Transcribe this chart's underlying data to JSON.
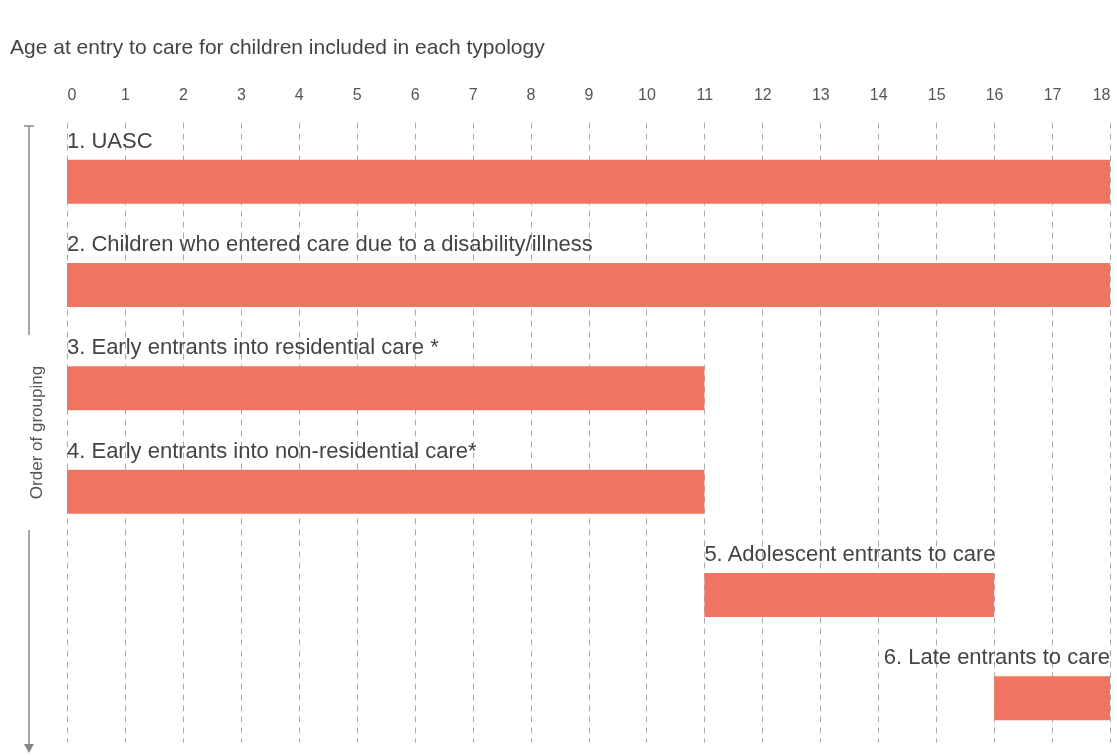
{
  "chart_data": {
    "type": "bar",
    "orientation": "horizontal",
    "title": "Age at entry to care for children included in each typology",
    "ylabel": "Order of grouping",
    "categories": [
      "1. UASC",
      "2. Children who entered care due to a disability/illness",
      "3. Early entrants into residential care *",
      "4. Early entrants into non-residential care*",
      "5. Adolescent entrants to care",
      "6. Late entrants to care"
    ],
    "base": [
      0,
      0,
      0,
      0,
      11,
      16
    ],
    "values": [
      18,
      18,
      11,
      11,
      5,
      2
    ],
    "color": "#f07462",
    "xlim": [
      0,
      18
    ],
    "xticks": [
      0,
      1,
      2,
      3,
      4,
      5,
      6,
      7,
      8,
      9,
      10,
      11,
      12,
      13,
      14,
      15,
      16,
      17,
      18
    ],
    "grid": "x"
  }
}
